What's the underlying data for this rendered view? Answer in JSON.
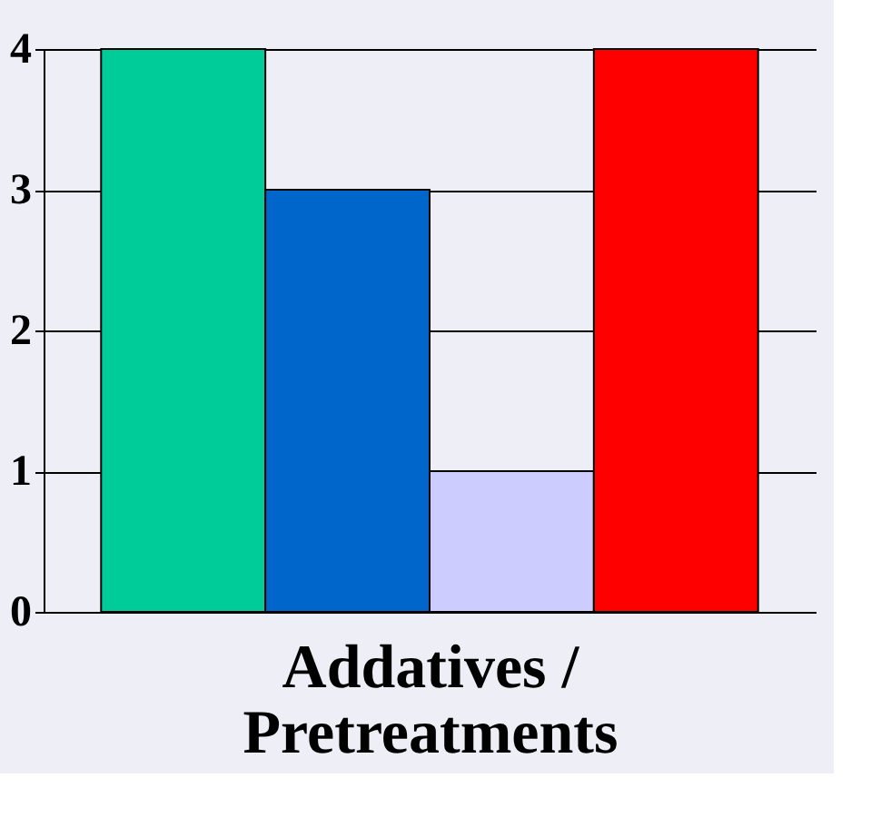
{
  "chart_data": {
    "type": "bar",
    "xlabel": "Addatives / Pretreatments",
    "categories": [
      null,
      null,
      null,
      null
    ],
    "values": [
      4,
      3,
      1,
      4
    ],
    "colors": [
      "#00cc99",
      "#0066cc",
      "#ccccff",
      "#ff0000"
    ],
    "ylim": [
      0,
      4
    ],
    "yticks": [
      0,
      1,
      2,
      3,
      4
    ],
    "grid": "y"
  }
}
